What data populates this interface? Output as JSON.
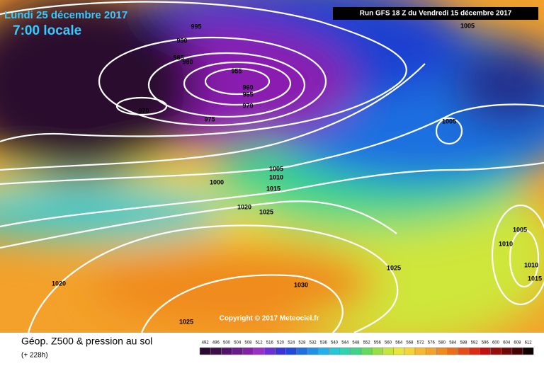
{
  "header": {
    "date": "Lundi 25 décembre 2017",
    "time": "7:00 locale",
    "run": "Run GFS 18 Z du Vendredi 15 décembre 2017"
  },
  "isobars": [
    995,
    990,
    985,
    980,
    955,
    960,
    965,
    970,
    970,
    975,
    1005,
    1005,
    1005,
    1010,
    1015,
    1000,
    1020,
    1025,
    1025,
    1030,
    1020,
    1025,
    1005,
    1010,
    1010,
    1015
  ],
  "copyright": "Copyright © 2017 Meteociel.fr",
  "footer": {
    "title": "Géop. Z500 & pression au sol",
    "lead": "(+ 228h)"
  },
  "legend": [
    492,
    496,
    500,
    504,
    508,
    512,
    516,
    520,
    524,
    528,
    532,
    536,
    540,
    544,
    548,
    552,
    556,
    560,
    564,
    568,
    572,
    576,
    580,
    584,
    588,
    592,
    596,
    600,
    604,
    608,
    612
  ]
}
